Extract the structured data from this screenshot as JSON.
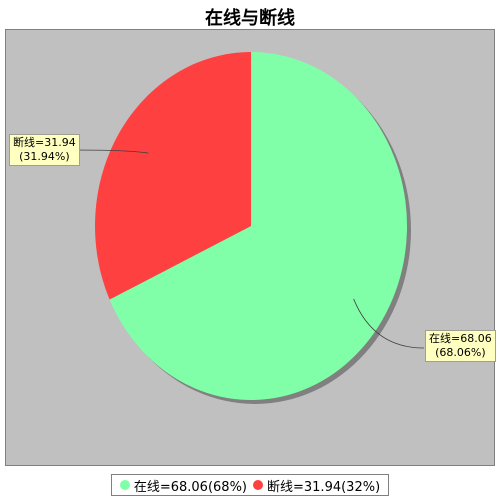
{
  "chart_data": {
    "type": "pie",
    "title": "在线与断线",
    "slices": [
      {
        "name": "在线",
        "value": 68.06,
        "percent_label": "68.06%",
        "legend_label": "在线=68.06(68%)",
        "label_line1": "在线=68.06",
        "label_line2": "(68.06%)",
        "color": "#80ffa8"
      },
      {
        "name": "断线",
        "value": 31.94,
        "percent_label": "31.94%",
        "legend_label": "断线=31.94(32%)",
        "label_line1": "断线=31.94",
        "label_line2": "(31.94%)",
        "color": "#ff4040"
      }
    ],
    "legend_position": "bottom",
    "background": "#c0c0c0"
  }
}
